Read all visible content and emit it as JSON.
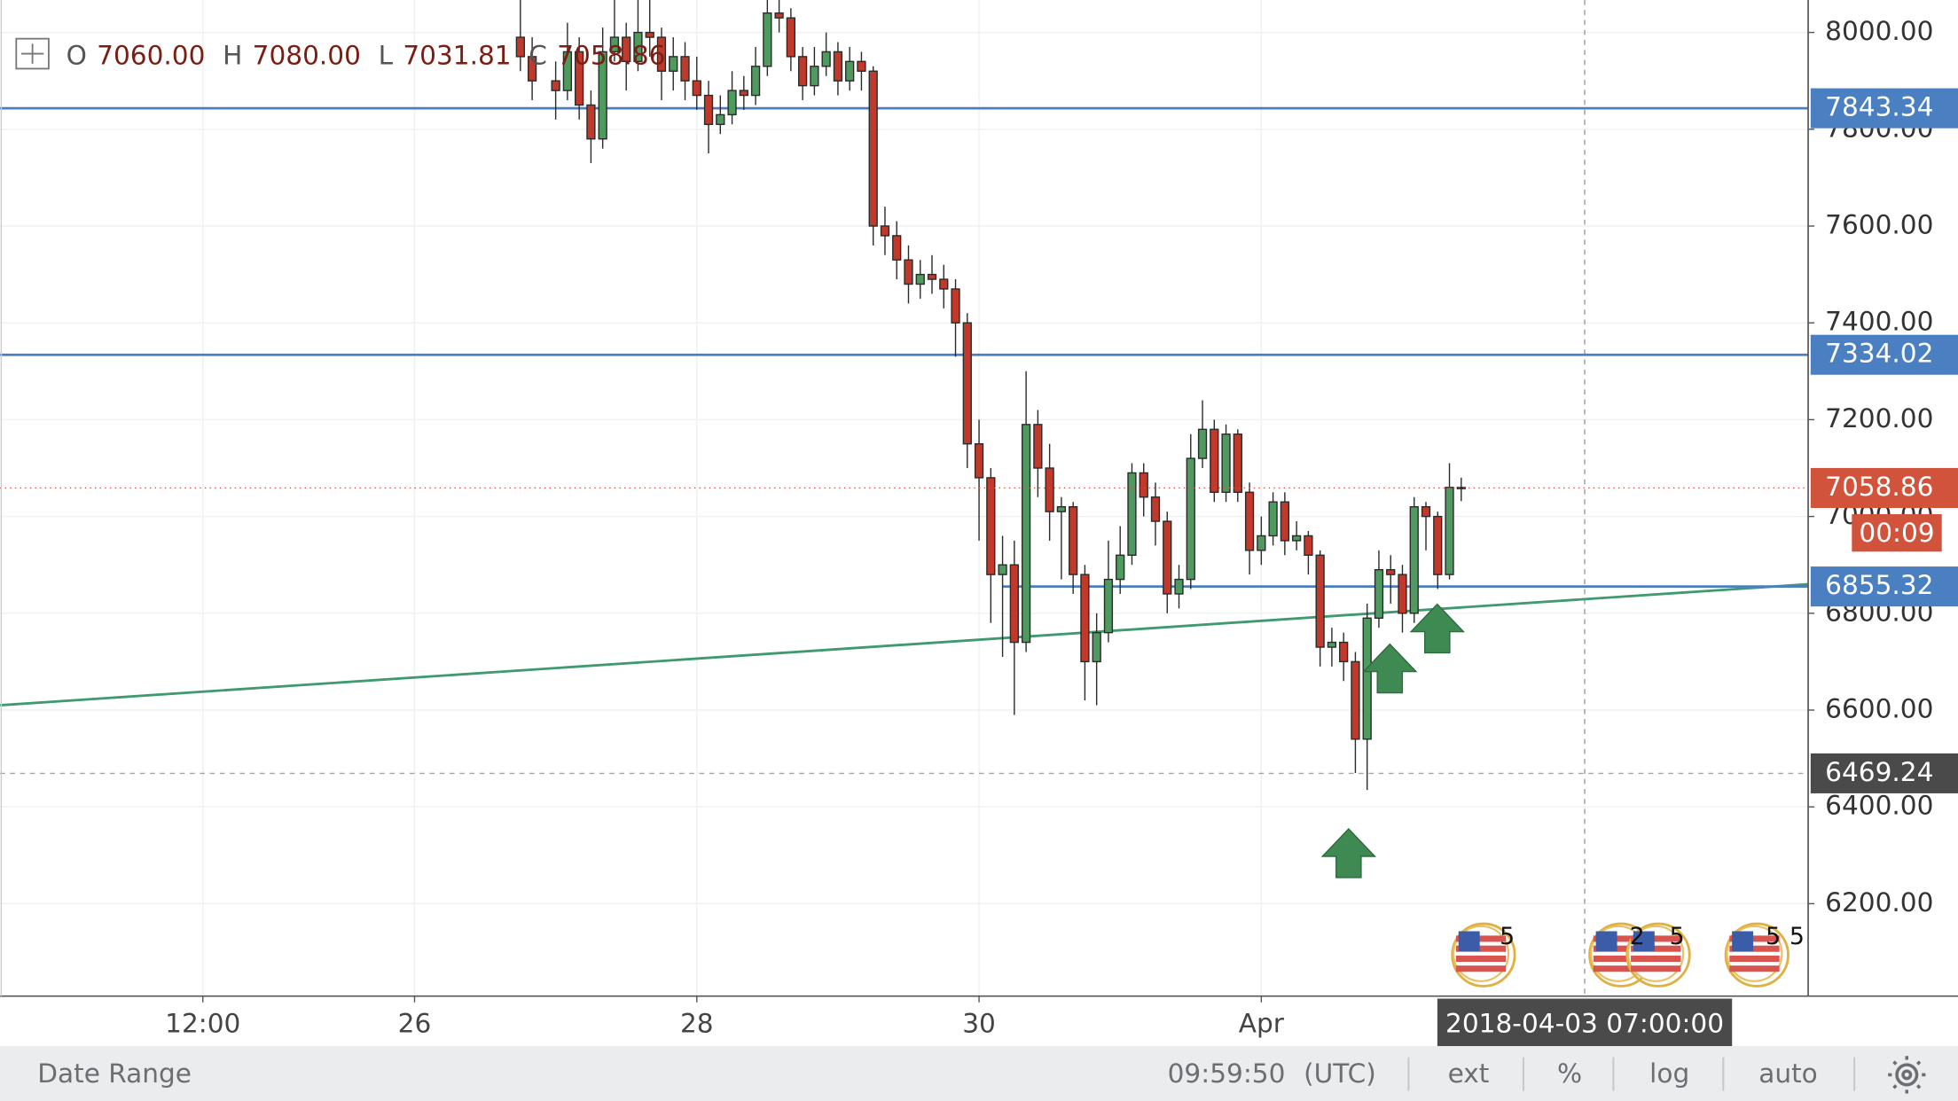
{
  "chart_data": {
    "type": "candlestick",
    "x": [
      "2018-03-26T18:00",
      "2018-03-26T20:00",
      "2018-03-27T00:00",
      "2018-03-27T02:00",
      "2018-03-27T04:00",
      "2018-03-27T06:00",
      "2018-03-27T08:00",
      "2018-03-27T10:00",
      "2018-03-27T12:00",
      "2018-03-27T14:00",
      "2018-03-27T16:00",
      "2018-03-27T18:00",
      "2018-03-27T20:00",
      "2018-03-27T22:00",
      "2018-03-28T00:00",
      "2018-03-28T02:00",
      "2018-03-28T04:00",
      "2018-03-28T06:00",
      "2018-03-28T08:00",
      "2018-03-28T10:00",
      "2018-03-28T12:00",
      "2018-03-28T14:00",
      "2018-03-28T16:00",
      "2018-03-28T18:00",
      "2018-03-28T20:00",
      "2018-03-28T22:00",
      "2018-03-29T00:00",
      "2018-03-29T02:00",
      "2018-03-29T04:00",
      "2018-03-29T06:00",
      "2018-03-29T08:00",
      "2018-03-29T10:00",
      "2018-03-29T12:00",
      "2018-03-29T14:00",
      "2018-03-29T16:00",
      "2018-03-29T18:00",
      "2018-03-29T20:00",
      "2018-03-29T22:00",
      "2018-03-30T00:00",
      "2018-03-30T02:00",
      "2018-03-30T04:00",
      "2018-03-30T06:00",
      "2018-03-30T08:00",
      "2018-03-30T10:00",
      "2018-03-30T12:00",
      "2018-03-30T14:00",
      "2018-03-30T16:00",
      "2018-03-30T18:00",
      "2018-03-30T20:00",
      "2018-03-30T22:00",
      "2018-03-31T00:00",
      "2018-03-31T02:00",
      "2018-03-31T04:00",
      "2018-03-31T06:00",
      "2018-03-31T08:00",
      "2018-03-31T10:00",
      "2018-03-31T12:00",
      "2018-03-31T14:00",
      "2018-03-31T16:00",
      "2018-03-31T18:00",
      "2018-03-31T20:00",
      "2018-03-31T22:00",
      "2018-04-01T00:00",
      "2018-04-01T02:00",
      "2018-04-01T04:00",
      "2018-04-01T06:00",
      "2018-04-01T08:00",
      "2018-04-01T10:00",
      "2018-04-01T12:00",
      "2018-04-01T14:00",
      "2018-04-01T16:00",
      "2018-04-01T18:00",
      "2018-04-01T20:00",
      "2018-04-01T22:00",
      "2018-04-02T00:00",
      "2018-04-02T02:00",
      "2018-04-02T04:00",
      "2018-04-02T06:00",
      "2018-04-02T08:00",
      "2018-04-02T10:00"
    ],
    "open": [
      7990,
      7950,
      7900,
      7880,
      7960,
      7850,
      7780,
      7960,
      7990,
      7940,
      8000,
      7990,
      7920,
      7950,
      7900,
      7870,
      7810,
      7830,
      7880,
      7870,
      7930,
      8040,
      8030,
      7950,
      7890,
      7930,
      7960,
      7900,
      7940,
      7920,
      7600,
      7580,
      7530,
      7480,
      7500,
      7490,
      7470,
      7400,
      7150,
      7080,
      6880,
      6900,
      6740,
      7190,
      7100,
      7010,
      7020,
      6880,
      6700,
      6760,
      6870,
      6920,
      7090,
      7040,
      6990,
      6840,
      6870,
      7120,
      7180,
      7050,
      7170,
      7050,
      6930,
      6960,
      7030,
      6950,
      6960,
      6920,
      6730,
      6740,
      6700,
      6540,
      6790,
      6890,
      6880,
      6800,
      7020,
      7000,
      6880,
      7060
    ],
    "high": [
      8090,
      7990,
      7940,
      8020,
      7990,
      7880,
      8010,
      8080,
      8020,
      8090,
      8070,
      8010,
      7990,
      7980,
      7950,
      7900,
      7870,
      7920,
      7910,
      7970,
      8080,
      8070,
      8050,
      7970,
      7970,
      8000,
      7980,
      7970,
      7960,
      7930,
      7640,
      7610,
      7560,
      7530,
      7540,
      7520,
      7490,
      7420,
      7200,
      7100,
      6960,
      6950,
      7300,
      7220,
      7150,
      7040,
      7030,
      6900,
      6800,
      6950,
      6980,
      7110,
      7110,
      7070,
      7010,
      6900,
      7170,
      7240,
      7200,
      7190,
      7180,
      7070,
      7000,
      7050,
      7050,
      6990,
      6970,
      6930,
      6770,
      6760,
      6720,
      6820,
      6930,
      6920,
      6900,
      7040,
      7030,
      7010,
      7110,
      7080
    ],
    "low": [
      7920,
      7860,
      7820,
      7860,
      7820,
      7730,
      7760,
      7940,
      7880,
      7920,
      7950,
      7860,
      7880,
      7860,
      7840,
      7750,
      7790,
      7810,
      7840,
      7850,
      7910,
      8000,
      7920,
      7860,
      7870,
      7910,
      7870,
      7880,
      7880,
      7560,
      7540,
      7490,
      7440,
      7450,
      7460,
      7430,
      7330,
      7100,
      6950,
      6780,
      6710,
      6590,
      6720,
      7040,
      6950,
      6870,
      6840,
      6620,
      6610,
      6740,
      6840,
      6900,
      7000,
      6940,
      6800,
      6810,
      6850,
      7100,
      7030,
      7030,
      7030,
      6880,
      6900,
      6940,
      6920,
      6930,
      6880,
      6690,
      6690,
      6660,
      6470,
      6435,
      6770,
      6820,
      6760,
      6780,
      6930,
      6850,
      6870,
      7031.81
    ],
    "close": [
      7950,
      7900,
      7880,
      7960,
      7850,
      7780,
      7960,
      7990,
      7940,
      8000,
      7990,
      7920,
      7950,
      7900,
      7870,
      7810,
      7830,
      7880,
      7870,
      7930,
      8040,
      8030,
      7950,
      7890,
      7930,
      7960,
      7900,
      7940,
      7920,
      7600,
      7580,
      7530,
      7480,
      7500,
      7490,
      7470,
      7400,
      7150,
      7080,
      6880,
      6900,
      6740,
      7190,
      7100,
      7010,
      7020,
      6880,
      6700,
      6760,
      6870,
      6920,
      7090,
      7040,
      6990,
      6840,
      6870,
      7120,
      7180,
      7050,
      7170,
      7050,
      6930,
      6960,
      7030,
      6950,
      6960,
      6920,
      6730,
      6740,
      6700,
      6540,
      6790,
      6890,
      6880,
      6800,
      7020,
      7000,
      6880,
      7060,
      7058.86
    ],
    "colors": {
      "up": "#4f9a5e",
      "down": "#c0392b",
      "border": "#2b2b2b"
    },
    "xlim": [
      "2018-03-23T01:30",
      "2018-04-04T21:00"
    ],
    "xticks": [
      {
        "value": "2018-03-24T12:00",
        "label": "12:00"
      },
      {
        "value": "2018-03-26T00:00",
        "label": "26"
      },
      {
        "value": "2018-03-28T00:00",
        "label": "28"
      },
      {
        "value": "2018-03-30T00:00",
        "label": "30"
      },
      {
        "value": "2018-04-01T00:00",
        "label": "Apr"
      }
    ],
    "ylim": [
      6009,
      8067
    ],
    "yticks": [
      {
        "value": 6200,
        "label": "6200.00"
      },
      {
        "value": 6400,
        "label": "6400.00"
      },
      {
        "value": 6600,
        "label": "6600.00"
      },
      {
        "value": 6800,
        "label": "6800.00"
      },
      {
        "value": 7000,
        "label": "7000.00"
      },
      {
        "value": 7200,
        "label": "7200.00"
      },
      {
        "value": 7400,
        "label": "7400.00"
      },
      {
        "value": 7600,
        "label": "7600.00"
      },
      {
        "value": 7800,
        "label": "7800.00"
      },
      {
        "value": 8000,
        "label": "8000.00"
      }
    ],
    "grid": true,
    "price_lines": [
      {
        "value": 7843.34,
        "color": "#4a7fc1"
      },
      {
        "value": 7334.02,
        "color": "#4a7fc1"
      },
      {
        "value": 6855.32,
        "color": "#4a7fc1",
        "from": "2018-03-30T04:00"
      },
      {
        "value": 6469.24,
        "color": "#4a4a4a",
        "style": "dashed"
      }
    ],
    "last_price_color": "#d2533c",
    "countdown": "00:09",
    "trendline": {
      "x": [
        "2018-03-23T01:30",
        "2018-04-04T21:00"
      ],
      "values": [
        6610,
        6860
      ],
      "color": "#3f9a6f"
    },
    "crosshair": {
      "value": "2018-04-03T07:00",
      "label": "2018-04-03 07:00:00"
    },
    "header": {
      "labels": [
        "O",
        "H",
        "L",
        "C"
      ],
      "value_labels": [
        "7060.00",
        "7080.00",
        "7031.81",
        "7058.86"
      ]
    },
    "events": [
      "5",
      "2",
      "5",
      "5",
      "5"
    ]
  },
  "toolbar": {
    "date_range": "Date Range",
    "clock": "09:59:50",
    "timezone": "(UTC)",
    "buttons": [
      "ext",
      "%",
      "log",
      "auto"
    ]
  }
}
